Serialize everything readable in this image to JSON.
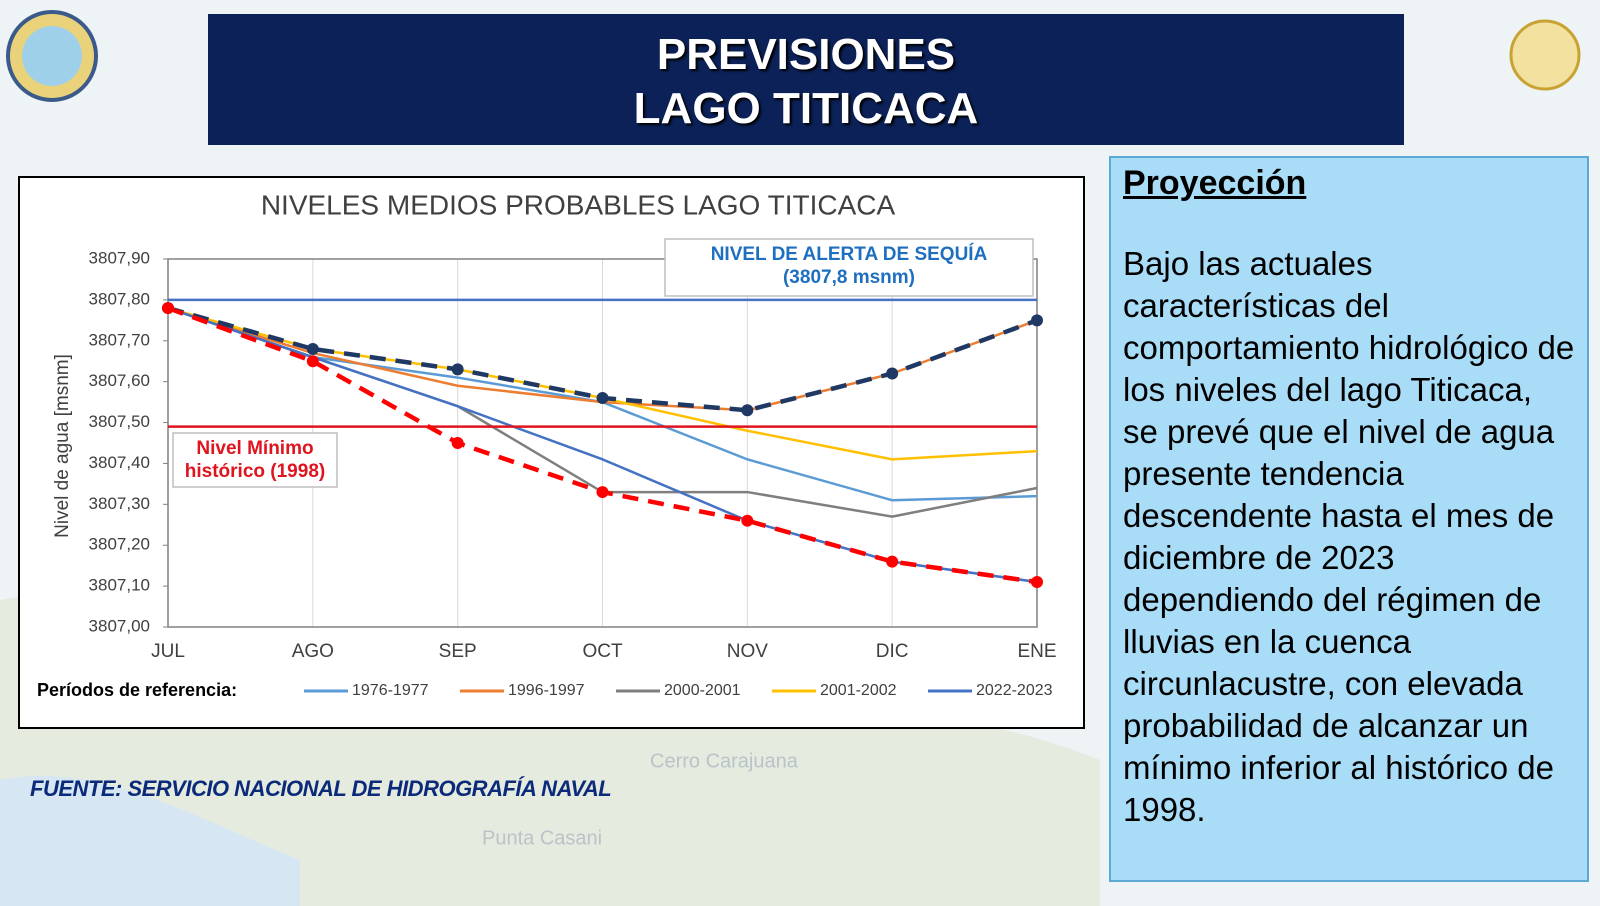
{
  "header": {
    "title_lines": [
      "PREVISIONES",
      "LAGO TITICACA"
    ]
  },
  "background_labels": [
    "Cerro Carajuana",
    "Punta Casani"
  ],
  "chart_data": {
    "type": "line",
    "title": "NIVELES MEDIOS PROBABLES LAGO TITICACA",
    "y_label": "Nivel de agua [msnm]",
    "categories": [
      "JUL",
      "AGO",
      "SEP",
      "OCT",
      "NOV",
      "DIC",
      "ENE"
    ],
    "ylim": [
      3807.0,
      3807.9
    ],
    "yticks": [
      {
        "value": 3807.0,
        "label": "3807,00"
      },
      {
        "value": 3807.1,
        "label": "3807,10"
      },
      {
        "value": 3807.2,
        "label": "3807,20"
      },
      {
        "value": 3807.3,
        "label": "3807,30"
      },
      {
        "value": 3807.4,
        "label": "3807,40"
      },
      {
        "value": 3807.5,
        "label": "3807,50"
      },
      {
        "value": 3807.6,
        "label": "3807,60"
      },
      {
        "value": 3807.7,
        "label": "3807,70"
      },
      {
        "value": 3807.8,
        "label": "3807,80"
      },
      {
        "value": 3807.9,
        "label": "3807,90"
      }
    ],
    "grid": "x",
    "legend_title": "Períodos de referencia:",
    "series": [
      {
        "name": "1976-1977",
        "color": "#5b9bd5",
        "values": [
          3807.78,
          3807.66,
          3807.61,
          3807.55,
          3807.41,
          3807.31,
          3807.32
        ]
      },
      {
        "name": "1996-1997",
        "color": "#ed7d31",
        "values": [
          3807.78,
          3807.67,
          3807.59,
          3807.55,
          3807.53,
          3807.62,
          3807.75
        ]
      },
      {
        "name": "2000-2001",
        "color": "#7f7f7f",
        "values": [
          3807.78,
          3807.66,
          3807.54,
          3807.33,
          3807.33,
          3807.27,
          3807.34
        ]
      },
      {
        "name": "2001-2002",
        "color": "#ffc000",
        "values": [
          3807.78,
          3807.68,
          3807.63,
          3807.56,
          3807.48,
          3807.41,
          3807.43
        ]
      },
      {
        "name": "2022-2023",
        "color": "#4472c4",
        "values": [
          3807.78,
          3807.66,
          3807.54,
          3807.41,
          3807.26,
          3807.16,
          3807.11
        ]
      },
      {
        "color": "#1f3864",
        "dashed": true,
        "markers": true,
        "values": [
          3807.78,
          3807.68,
          3807.63,
          3807.56,
          3807.53,
          3807.62,
          3807.75
        ]
      },
      {
        "color": "#ff0000",
        "dashed": true,
        "markers": true,
        "values": [
          3807.78,
          3807.65,
          3807.45,
          3807.33,
          3807.26,
          3807.16,
          3807.11
        ]
      }
    ],
    "hlines": [
      {
        "value": 3807.8,
        "color": "#4472c4",
        "label_lines": [
          "NIVEL DE ALERTA DE SEQUÍA",
          "(3807,8 msnm)"
        ],
        "label_color": "#1f6fc0"
      },
      {
        "value": 3807.49,
        "color": "#e0141e",
        "label_lines": [
          "Nivel Mínimo",
          "histórico (1998)"
        ],
        "label_color": "#e0141e"
      }
    ]
  },
  "panel": {
    "heading": "Proyección",
    "body": "Bajo las actuales características del comportamiento hidrológico de los niveles del lago Titicaca, se prevé que el nivel de agua presente tendencia descendente hasta el mes de diciembre de 2023 dependiendo del régimen de lluvias en la cuenca circunlacustre, con elevada probabilidad de alcanzar un mínimo inferior al histórico de 1998."
  },
  "source": "FUENTE: SERVICIO NACIONAL DE HIDROGRAFÍA NAVAL"
}
